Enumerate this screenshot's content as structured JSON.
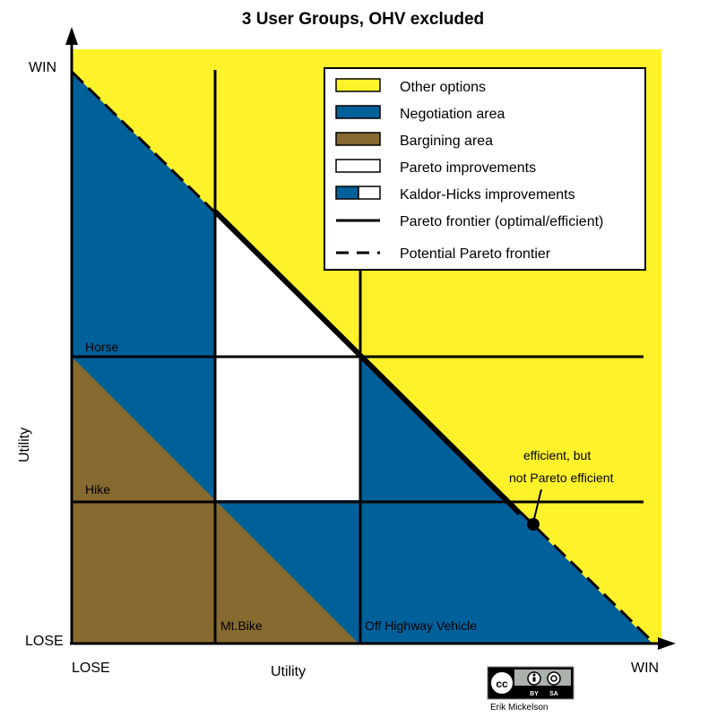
{
  "title": "3 User Groups, OHV excluded",
  "axes": {
    "y_label": "Utility",
    "x_label": "Utility",
    "y_top": "WIN",
    "y_bottom": "LOSE",
    "x_left": "LOSE",
    "x_right": "WIN"
  },
  "groups": {
    "horse": "Horse",
    "hike": "Hike",
    "mtbike": "Mt.Bike",
    "ohv": "Off Highway Vehicle"
  },
  "legend": [
    {
      "label": "Other options",
      "color": "#fff22a"
    },
    {
      "label": "Negotiation area",
      "color": "#00609a"
    },
    {
      "label": "Bargining area",
      "color": "#876a2f"
    },
    {
      "label": "Pareto improvements",
      "color": "#ffffff"
    },
    {
      "label": "Kaldor-Hicks improvements",
      "color": "#00609a"
    },
    {
      "label": "Pareto frontier (optimal/efficient)",
      "color": "#000000"
    },
    {
      "label": "Potential Pareto frontier",
      "color": "#000000"
    }
  ],
  "annotation": {
    "line1": "efficient, but",
    "line2": "not Pareto efficient"
  },
  "license": {
    "cc": "cc",
    "by": "BY",
    "sa": "SA",
    "author": "Erik Mickelson"
  }
}
